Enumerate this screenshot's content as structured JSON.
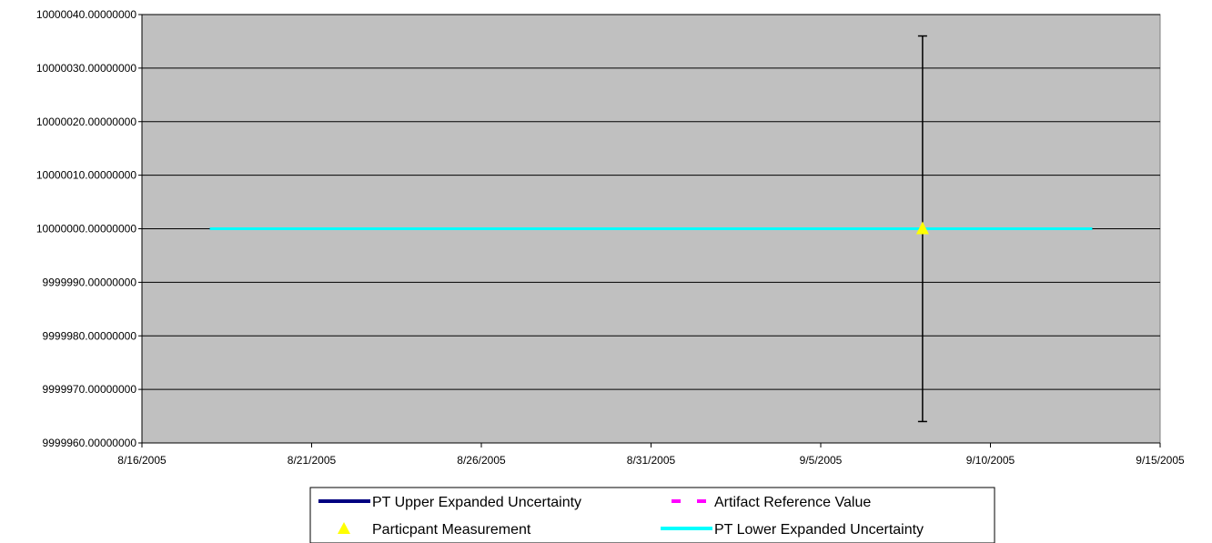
{
  "chart_data": {
    "type": "line",
    "title": "",
    "xlabel": "",
    "ylabel": "",
    "x_axis": {
      "type": "date",
      "min": "2005-08-16",
      "max": "2005-09-15",
      "ticks": [
        "2005-08-16",
        "2005-08-21",
        "2005-08-26",
        "2005-08-31",
        "2005-09-05",
        "2005-09-10",
        "2005-09-15"
      ],
      "tick_labels": [
        "8/16/2005",
        "8/21/2005",
        "8/26/2005",
        "8/31/2005",
        "9/5/2005",
        "9/10/2005",
        "9/15/2005"
      ]
    },
    "y_axis": {
      "min": 9999960,
      "max": 10000040,
      "ticks": [
        9999960,
        9999970,
        9999980,
        9999990,
        10000000,
        10000010,
        10000020,
        10000030,
        10000040
      ],
      "tick_labels": [
        "9999960.00000000",
        "9999970.00000000",
        "9999980.00000000",
        "9999990.00000000",
        "10000000.00000000",
        "10000010.00000000",
        "10000020.00000000",
        "10000030.00000000",
        "10000040.00000000"
      ]
    },
    "grid": "horizontal",
    "plot_background": "#c0c0c0",
    "legend_position": "bottom",
    "series": [
      {
        "name": "PT Upper Expanded Uncertainty",
        "style": "line",
        "color": "#000080",
        "x": [
          "2005-08-18",
          "2005-09-13"
        ],
        "y": [
          10000000.0,
          10000000.0
        ]
      },
      {
        "name": "Artifact Reference Value",
        "style": "dashed",
        "color": "#ff00ff",
        "x": [
          "2005-08-18",
          "2005-09-13"
        ],
        "y": [
          10000000.0,
          10000000.0
        ]
      },
      {
        "name": "Particpant Measurement",
        "style": "marker",
        "marker": "triangle",
        "color": "#ffff00",
        "x": [
          "2005-09-08"
        ],
        "y": [
          10000000.0
        ],
        "error_bar": {
          "lower": 9999964,
          "upper": 10000036,
          "color": "#000000"
        }
      },
      {
        "name": "PT Lower Expanded Uncertainty",
        "style": "line",
        "color": "#00ffff",
        "x": [
          "2005-08-18",
          "2005-09-13"
        ],
        "y": [
          10000000.0,
          10000000.0
        ]
      }
    ],
    "legend": [
      "PT Upper Expanded Uncertainty",
      "Artifact Reference Value",
      "Particpant Measurement",
      "PT Lower Expanded Uncertainty"
    ]
  }
}
